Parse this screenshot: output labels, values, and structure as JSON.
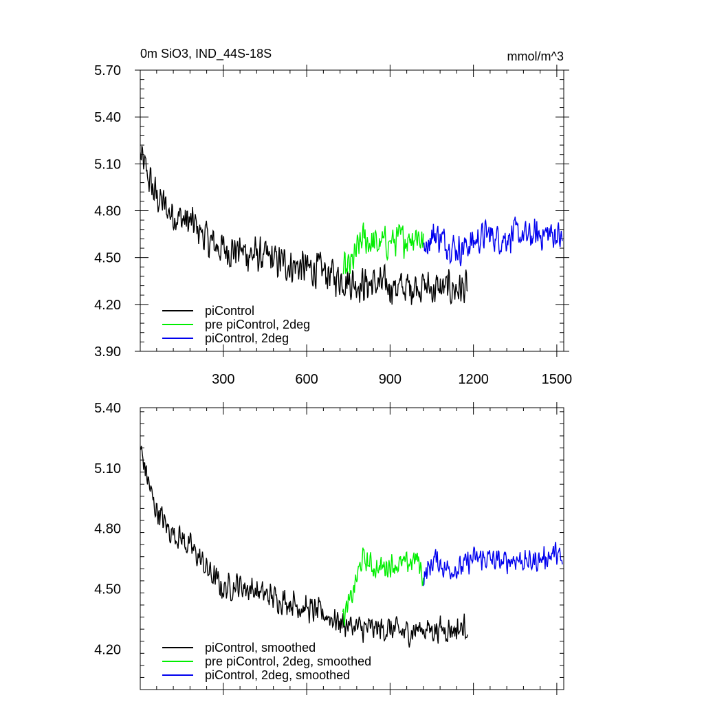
{
  "chart_data": [
    {
      "type": "line",
      "title": "0m SiO3, IND_44S-18S",
      "units": "mmol/m^3",
      "xlim": [
        1,
        1525
      ],
      "ylim": [
        3.9,
        5.7
      ],
      "xticks": [
        300,
        600,
        900,
        1200,
        1500
      ],
      "xtick_labels": [
        "300",
        "600",
        "900",
        "1200",
        "1500"
      ],
      "yticks": [
        3.9,
        4.2,
        4.5,
        4.8,
        5.1,
        5.4,
        5.7
      ],
      "ytick_labels": [
        "3.90",
        "4.20",
        "4.50",
        "4.80",
        "5.10",
        "5.40",
        "5.70"
      ],
      "grid": false,
      "legend_position": "bottom-left",
      "series": [
        {
          "name": "piControl",
          "color": "#000000",
          "x": [
            1,
            50,
            100,
            150,
            200,
            250,
            300,
            350,
            400,
            450,
            500,
            550,
            600,
            650,
            700,
            750,
            800,
            850,
            900,
            950,
            1000,
            1050,
            1100,
            1150,
            1180
          ],
          "values": [
            5.15,
            4.92,
            4.8,
            4.75,
            4.7,
            4.6,
            4.55,
            4.55,
            4.52,
            4.5,
            4.47,
            4.45,
            4.43,
            4.42,
            4.38,
            4.35,
            4.33,
            4.33,
            4.32,
            4.3,
            4.33,
            4.3,
            4.3,
            4.3,
            4.3
          ],
          "noise": 0.14
        },
        {
          "name": "pre piControl, 2deg",
          "color": "#00ee00",
          "x": [
            730,
            760,
            800,
            850,
            900,
            950,
            1000,
            1020
          ],
          "values": [
            4.4,
            4.45,
            4.62,
            4.58,
            4.6,
            4.62,
            4.65,
            4.58
          ],
          "noise": 0.13
        },
        {
          "name": "piControl, 2deg",
          "color": "#0000ee",
          "x": [
            1020,
            1060,
            1100,
            1150,
            1200,
            1250,
            1300,
            1350,
            1400,
            1450,
            1500,
            1520
          ],
          "values": [
            4.58,
            4.65,
            4.6,
            4.55,
            4.6,
            4.65,
            4.62,
            4.65,
            4.63,
            4.65,
            4.65,
            4.6
          ],
          "noise": 0.12
        }
      ]
    },
    {
      "type": "line",
      "xlim": [
        1,
        1525
      ],
      "ylim": [
        4.0,
        5.4
      ],
      "xticks": [
        300,
        600,
        900,
        1200,
        1500
      ],
      "yticks": [
        4.2,
        4.5,
        4.8,
        5.1,
        5.4
      ],
      "ytick_labels": [
        "4.20",
        "4.50",
        "4.80",
        "5.10",
        "5.40"
      ],
      "grid": false,
      "legend_position": "bottom-left",
      "series": [
        {
          "name": "piControl, smoothed",
          "color": "#000000",
          "x": [
            1,
            50,
            100,
            150,
            200,
            250,
            300,
            350,
            400,
            450,
            500,
            550,
            600,
            650,
            700,
            750,
            800,
            850,
            900,
            950,
            1000,
            1050,
            1100,
            1150,
            1180
          ],
          "values": [
            5.2,
            4.92,
            4.8,
            4.75,
            4.68,
            4.58,
            4.5,
            4.52,
            4.5,
            4.47,
            4.45,
            4.43,
            4.4,
            4.38,
            4.35,
            4.32,
            4.3,
            4.3,
            4.3,
            4.28,
            4.3,
            4.3,
            4.3,
            4.3,
            4.32
          ],
          "noise": 0.08
        },
        {
          "name": "pre piControl, 2deg, smoothed",
          "color": "#00ee00",
          "x": [
            730,
            760,
            800,
            850,
            900,
            950,
            1000,
            1020
          ],
          "values": [
            4.35,
            4.45,
            4.65,
            4.6,
            4.62,
            4.62,
            4.65,
            4.55
          ],
          "noise": 0.07
        },
        {
          "name": "piControl, 2deg, smoothed",
          "color": "#0000ee",
          "x": [
            1020,
            1060,
            1100,
            1150,
            1200,
            1250,
            1300,
            1350,
            1400,
            1450,
            1500,
            1520
          ],
          "values": [
            4.55,
            4.65,
            4.6,
            4.6,
            4.65,
            4.65,
            4.63,
            4.65,
            4.63,
            4.65,
            4.68,
            4.62
          ],
          "noise": 0.07
        }
      ]
    }
  ]
}
